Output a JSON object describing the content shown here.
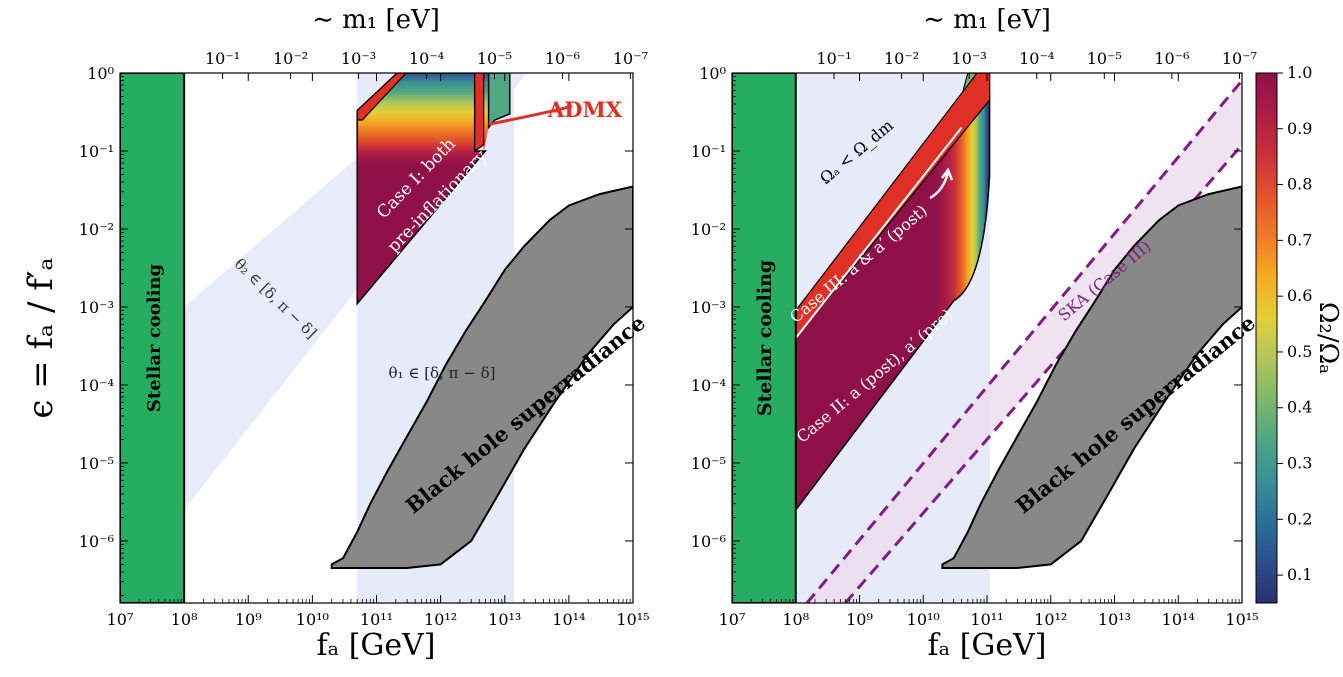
{
  "colors": {
    "stellar": "#27ad62",
    "bh_fill": "#888888",
    "band": "#e6eaf9",
    "admx": "#e03026",
    "ska": "#7f1d84",
    "ska_fill": "#ecdcee",
    "white": "#ffffff"
  },
  "colorbar": {
    "label": "Ω₂/Ωₐ",
    "ticks": [
      "0.1",
      "0.2",
      "0.3",
      "0.4",
      "0.5",
      "0.6",
      "0.7",
      "0.8",
      "0.9",
      "1.0"
    ],
    "tick_values": [
      0.1,
      0.2,
      0.3,
      0.4,
      0.5,
      0.6,
      0.7,
      0.8,
      0.9,
      1.0
    ],
    "range": [
      0.05,
      1.0
    ],
    "colors": [
      "#2b2f6e",
      "#2b4f8c",
      "#2b6f9a",
      "#3a8e96",
      "#4fa783",
      "#7fb86a",
      "#b1c65a",
      "#e4cf38",
      "#f2ad22",
      "#ef7b24",
      "#e3532a",
      "#c9303a",
      "#ad1d46",
      "#8f1049"
    ]
  },
  "panels": [
    {
      "id": "left",
      "xlabel": "fₐ [GeV]",
      "ylabel": "ϵ = fₐ / f′ₐ",
      "top_label": "∼ m₁ [eV]",
      "xticks": [
        "10⁷",
        "10⁸",
        "10⁹",
        "10¹⁰",
        "10¹¹",
        "10¹²",
        "10¹³",
        "10¹⁴",
        "10¹⁵"
      ],
      "yticks": [
        "10⁰",
        "10⁻¹",
        "10⁻²",
        "10⁻³",
        "10⁻⁴",
        "10⁻⁵",
        "10⁻⁶"
      ],
      "top_ticks": [
        "10⁻¹",
        "10⁻²",
        "10⁻³",
        "10⁻⁴",
        "10⁻⁵",
        "10⁻⁶",
        "10⁻⁷"
      ],
      "labels": {
        "stellar": "Stellar cooling",
        "bh": "Black hole superradiance",
        "theta2": "θ₂ ∈ [δ, π − δ]",
        "theta1": "θ₁ ∈ [δ, π − δ]",
        "case1_line1": "Case I: both",
        "case1_line2": "pre-inflationary",
        "admx": "ADMX"
      }
    },
    {
      "id": "right",
      "xlabel": "fₐ [GeV]",
      "top_label": "∼ m₁ [eV]",
      "xticks": [
        "10⁷",
        "10⁸",
        "10⁹",
        "10¹⁰",
        "10¹¹",
        "10¹²",
        "10¹³",
        "10¹⁴",
        "10¹⁵"
      ],
      "yticks": [
        "10⁰",
        "10⁻¹",
        "10⁻²",
        "10⁻³",
        "10⁻⁴",
        "10⁻⁵",
        "10⁻⁶"
      ],
      "top_ticks": [
        "10⁻¹",
        "10⁻²",
        "10⁻³",
        "10⁻⁴",
        "10⁻⁵",
        "10⁻⁶",
        "10⁻⁷"
      ],
      "labels": {
        "stellar": "Stellar cooling",
        "bh": "Black hole superradiance",
        "ska": "SKA (Case III)",
        "omega": "Ωₐ < Ω_dm",
        "case3": "Case III: a & a′ (post)",
        "case2": "Case II: a (post), a′ (pre)"
      }
    }
  ],
  "chart_data": [
    {
      "type": "area",
      "xlabel": "fₐ [GeV]",
      "ylabel": "ϵ = fₐ / f′ₐ",
      "x_scale": "log",
      "y_scale": "log",
      "xlim": [
        10000000.0,
        1000000000000000.0
      ],
      "ylim": [
        1.6e-07,
        1.0
      ],
      "top_axis": {
        "label": "∼ m₁ [eV]",
        "ticks": [
          0.1,
          0.01,
          0.001,
          0.0001,
          1e-05,
          1e-06,
          1e-07
        ]
      },
      "regions": [
        {
          "name": "Stellar cooling",
          "x_range": [
            10000000.0,
            100000000.0
          ],
          "y_range": [
            1.6e-07,
            1.0
          ]
        },
        {
          "name": "θ₁ ∈ [δ, π − δ]",
          "x_range": [
            50000000000.0,
            14000000000000.0
          ]
        },
        {
          "name": "θ₂ ∈ [δ, π − δ]",
          "polygon": [
            [
              100000000.0,
              2.5e-06
            ],
            [
              100000000.0,
              0.001
            ],
            [
              1700000000000.0,
              1.0
            ],
            [
              22000000000000.0,
              1.0
            ]
          ]
        },
        {
          "name": "Case I: both pre-inflationary",
          "polygon": [
            [
              50000000000.0,
              0.0011
            ],
            [
              50000000000.0,
              0.33
            ],
            [
              210000000000.0,
              1.0
            ],
            [
              12000000000000.0,
              1.0
            ],
            [
              12000000000000.0,
              0.3
            ],
            [
              5000000000000.0,
              0.1
            ]
          ]
        },
        {
          "name": "ADMX",
          "x_ranges": [
            [
              50000000000.0,
              120000000000.0
            ],
            [
              3400000000000.0,
              4700000000000.0
            ]
          ]
        },
        {
          "name": "Black hole superradiance",
          "polygon": [
            [
              20000000000.0,
              4.5e-07
            ],
            [
              1000000000000000.0,
              0.035
            ],
            [
              1000000000000000.0,
              0.001
            ],
            [
              2000000000000.0,
              5e-07
            ]
          ]
        }
      ],
      "colorbar": {
        "label": "Ω₂/Ωₐ",
        "range": [
          0.05,
          1.0
        ]
      }
    },
    {
      "type": "area",
      "xlabel": "fₐ [GeV]",
      "x_scale": "log",
      "y_scale": "log",
      "xlim": [
        10000000.0,
        1000000000000000.0
      ],
      "ylim": [
        1.6e-07,
        1.0
      ],
      "top_axis": {
        "label": "∼ m₁ [eV]",
        "ticks": [
          0.1,
          0.01,
          0.001,
          0.0001,
          1e-05,
          1e-06,
          1e-07
        ]
      },
      "regions": [
        {
          "name": "Stellar cooling",
          "x_range": [
            10000000.0,
            100000000.0
          ],
          "y_range": [
            1.6e-07,
            1.0
          ]
        },
        {
          "name": "allowed band",
          "x_range": [
            100000000.0,
            110000000000.0
          ]
        },
        {
          "name": "Case II: a (post), a′ (pre)",
          "polygon": [
            [
              100000000.0,
              2.5e-06
            ],
            [
              100000000.0,
              0.0006
            ],
            [
              110000000000.0,
              0.5
            ],
            [
              110000000000.0,
              0.0015
            ]
          ]
        },
        {
          "name": "Case III: a & a′ (post)",
          "line": [
            [
              100000000.0,
              0.0006
            ],
            [
              110000000000.0,
              0.5
            ]
          ]
        },
        {
          "name": "SKA (Case III)",
          "dashed_lines": [
            [
              [
                150000000.0,
                1.6e-07
              ],
              [
                1000000000000000.0,
                0.8
              ]
            ],
            [
              [
                600000000.0,
                1.6e-07
              ],
              [
                1000000000000000.0,
                0.12
              ]
            ]
          ]
        },
        {
          "name": "Black hole superradiance",
          "polygon": [
            [
              20000000000.0,
              4.5e-07
            ],
            [
              1000000000000000.0,
              0.035
            ],
            [
              1000000000000000.0,
              0.001
            ],
            [
              2000000000000.0,
              5e-07
            ]
          ]
        }
      ],
      "annotations": [
        "Ωₐ < Ω_dm"
      ]
    }
  ]
}
